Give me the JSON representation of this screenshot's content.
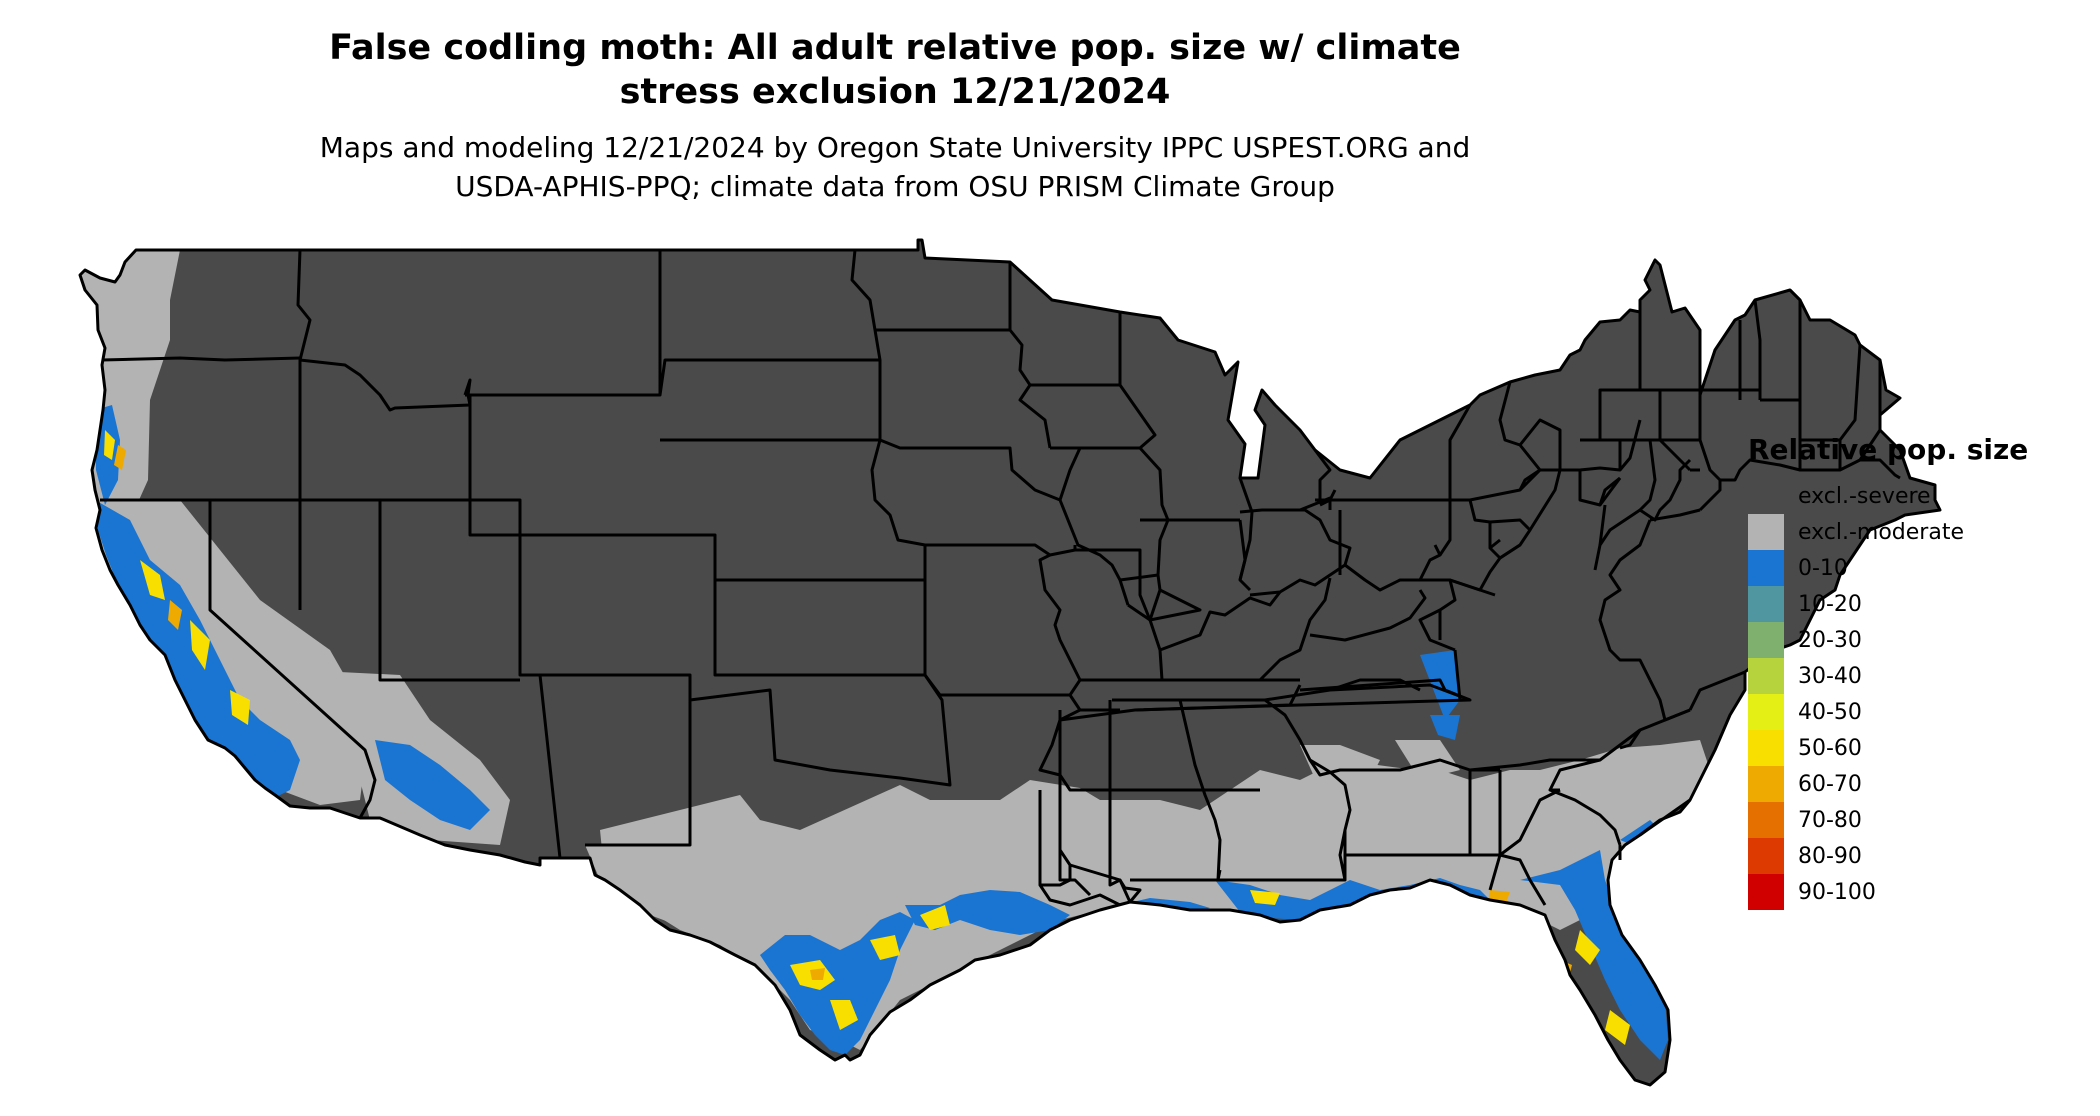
{
  "title_line1": "False codling moth: All adult relative pop. size w/ climate",
  "title_line2": "stress exclusion 12/21/2024",
  "subtitle_line1": "Maps and modeling 12/21/2024 by Oregon State University IPPC USPEST.ORG and",
  "subtitle_line2": "USDA-APHIS-PPQ; climate data from OSU PRISM Climate Group",
  "legend": {
    "title": "Relative pop. size",
    "items": [
      {
        "label": "excl.-severe",
        "color": "#4a4a4a",
        "icon": "swatch-excl-severe"
      },
      {
        "label": "excl.-moderate",
        "color": "#b3b3b3",
        "icon": "swatch-excl-moderate"
      },
      {
        "label": "0-10",
        "color": "#1a75d2",
        "icon": "swatch-0-10"
      },
      {
        "label": "10-20",
        "color": "#4f96a0",
        "icon": "swatch-10-20"
      },
      {
        "label": "20-30",
        "color": "#7fb06e",
        "icon": "swatch-20-30"
      },
      {
        "label": "30-40",
        "color": "#b6d23c",
        "icon": "swatch-30-40"
      },
      {
        "label": "40-50",
        "color": "#e4ef16",
        "icon": "swatch-40-50"
      },
      {
        "label": "50-60",
        "color": "#f8df00",
        "icon": "swatch-50-60"
      },
      {
        "label": "60-70",
        "color": "#eeaa00",
        "icon": "swatch-60-70"
      },
      {
        "label": "70-80",
        "color": "#e57000",
        "icon": "swatch-70-80"
      },
      {
        "label": "80-90",
        "color": "#dc3a00",
        "icon": "swatch-80-90"
      },
      {
        "label": "90-100",
        "color": "#d10000",
        "icon": "swatch-90-100"
      }
    ]
  },
  "map": {
    "colors": {
      "severe": "#4a4a4a",
      "moderate": "#b3b3b3",
      "low": "#1a75d2",
      "mid": "#f8df00",
      "high": "#eeaa00",
      "border": "#000000"
    }
  }
}
